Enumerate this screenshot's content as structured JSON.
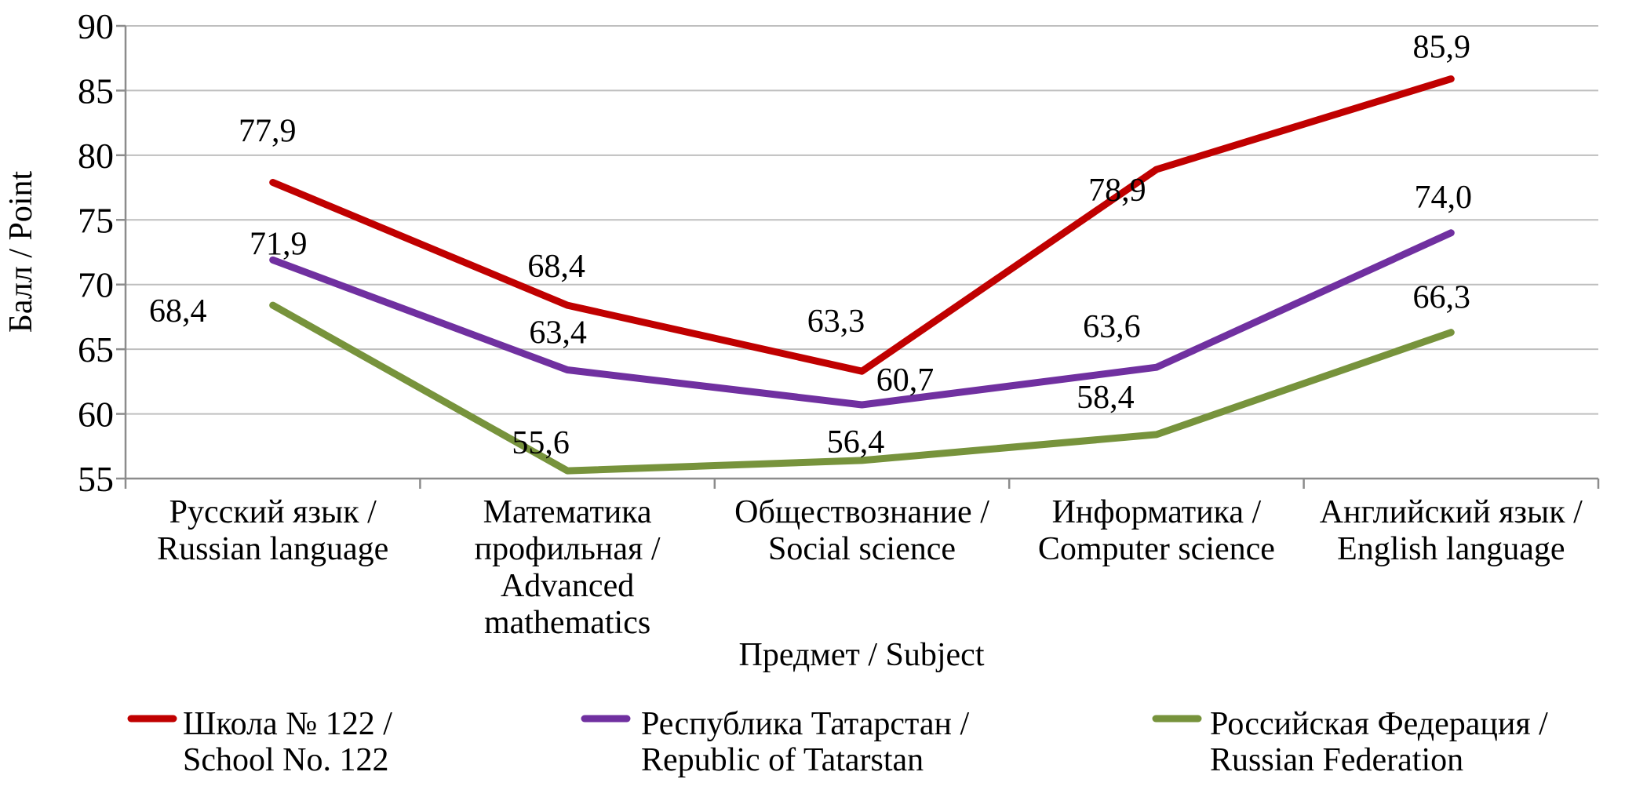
{
  "chart_data": {
    "type": "line",
    "y_axis_title": "Балл / Point",
    "x_axis_title": "Предмет / Subject",
    "ylim": [
      55,
      90
    ],
    "y_ticks": [
      55,
      60,
      65,
      70,
      75,
      80,
      85,
      90
    ],
    "grid": true,
    "legend_position": "bottom",
    "decimal_separator": ",",
    "categories": [
      {
        "id": "russian-language",
        "lines": [
          "Русский язык /",
          "Russian language"
        ]
      },
      {
        "id": "advanced-mathematics",
        "lines": [
          "Математика",
          "профильная /",
          "Advanced",
          "mathematics"
        ]
      },
      {
        "id": "social-science",
        "lines": [
          "Обществознание  /",
          "Social science"
        ]
      },
      {
        "id": "computer-science",
        "lines": [
          "Информатика /",
          "Computer science"
        ]
      },
      {
        "id": "english-language",
        "lines": [
          "Английский язык /",
          "English language"
        ]
      }
    ],
    "series": [
      {
        "id": "school-122",
        "name_lines": [
          "Школа № 122 /",
          "School No. 122"
        ],
        "color": "#C00000",
        "values": [
          77.9,
          68.4,
          63.3,
          78.9,
          85.9
        ],
        "labels": [
          "77,9",
          "68,4",
          "63,3",
          "78,9",
          "85,9"
        ]
      },
      {
        "id": "republic-of-tatarstan",
        "name_lines": [
          "Республика Татарстан /",
          "Republic of Tatarstan"
        ],
        "color": "#7030A0",
        "values": [
          71.9,
          63.4,
          60.7,
          63.6,
          74.0
        ],
        "labels": [
          "71,9",
          "63,4",
          "60,7",
          "63,6",
          "74,0"
        ]
      },
      {
        "id": "russian-federation",
        "name_lines": [
          "Российская Федерация /",
          "Russian Federation"
        ],
        "color": "#77933C",
        "values": [
          68.4,
          55.6,
          56.4,
          58.4,
          66.3
        ],
        "labels": [
          "68,4",
          "55,6",
          "56,4",
          "58,4",
          "66,3"
        ]
      }
    ],
    "style_colors": {
      "gridline": "#BFBFBF",
      "axis": "#8C8C8C",
      "text": "#000000"
    }
  }
}
